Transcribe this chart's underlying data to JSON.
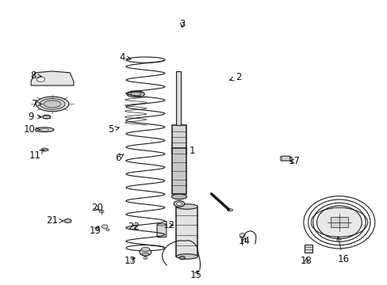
{
  "background_color": "#ffffff",
  "line_color": "#1a1a1a",
  "label_color": "#111111",
  "figsize": [
    4.89,
    3.6
  ],
  "dpi": 100,
  "parts_labels": {
    "1": [
      0.495,
      0.47,
      0.455,
      0.47
    ],
    "2": [
      0.615,
      0.73,
      0.585,
      0.715
    ],
    "3": [
      0.47,
      0.915,
      0.47,
      0.895
    ],
    "4": [
      0.315,
      0.8,
      0.345,
      0.79
    ],
    "5": [
      0.285,
      0.545,
      0.315,
      0.555
    ],
    "6": [
      0.305,
      0.445,
      0.32,
      0.46
    ],
    "7": [
      0.09,
      0.635,
      0.115,
      0.635
    ],
    "8": [
      0.085,
      0.735,
      0.115,
      0.73
    ],
    "9": [
      0.08,
      0.59,
      0.115,
      0.59
    ],
    "10": [
      0.075,
      0.545,
      0.105,
      0.545
    ],
    "11": [
      0.09,
      0.455,
      0.115,
      0.475
    ],
    "12": [
      0.435,
      0.21,
      0.455,
      0.21
    ],
    "13": [
      0.335,
      0.085,
      0.355,
      0.1
    ],
    "14": [
      0.63,
      0.155,
      0.635,
      0.175
    ],
    "15": [
      0.505,
      0.035,
      0.515,
      0.06
    ],
    "16": [
      0.885,
      0.09,
      0.87,
      0.18
    ],
    "17": [
      0.76,
      0.435,
      0.74,
      0.435
    ],
    "18": [
      0.79,
      0.085,
      0.79,
      0.105
    ],
    "19": [
      0.245,
      0.19,
      0.26,
      0.215
    ],
    "20": [
      0.25,
      0.27,
      0.26,
      0.255
    ],
    "21": [
      0.135,
      0.225,
      0.165,
      0.225
    ],
    "22": [
      0.345,
      0.205,
      0.36,
      0.215
    ]
  }
}
